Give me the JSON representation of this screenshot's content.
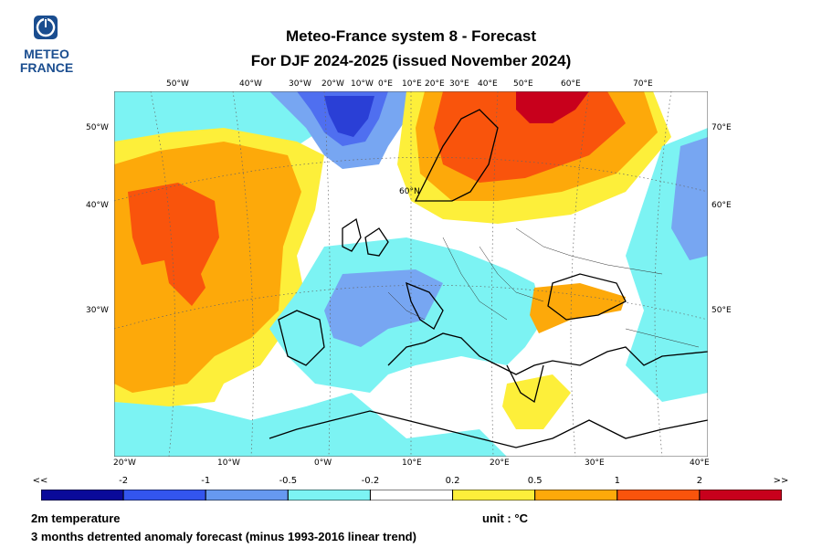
{
  "logo": {
    "line1": "METEO",
    "line2": "FRANCE"
  },
  "title": {
    "line1": "Meteo-France system 8  -  Forecast",
    "line2": "For DJF 2024-2025      (issued November 2024)"
  },
  "map": {
    "top_labels": [
      "50°W",
      "40°W",
      "30°W",
      "20°W",
      "10°W",
      "0°E",
      "10°E",
      "20°E",
      "30°E",
      "40°E",
      "50°E",
      "60°E",
      "70°E"
    ],
    "bottom_labels": [
      "20°W",
      "10°W",
      "0°W",
      "10°E",
      "20°E",
      "30°E",
      "40°E"
    ],
    "left_labels": [
      "50°W",
      "40°W",
      "30°W"
    ],
    "right_labels": [
      "70°E",
      "60°E",
      "50°E"
    ],
    "inner_label": "60°N",
    "colors": {
      "strong_cold": "#2a3fd6",
      "mid_cold": "#4f6ff0",
      "light_cold": "#77a6f2",
      "cyan": "#7cf3f3",
      "neutral": "#ffffff",
      "yellow": "#fdef3a",
      "orange": "#fda90a",
      "red_orange": "#f9540c",
      "dark_red": "#c8001c"
    }
  },
  "legend": {
    "left_open": "<<",
    "right_open": ">>",
    "ticks": [
      "-2",
      "-1",
      "-0.5",
      "-0.2",
      "0.2",
      "0.5",
      "1",
      "2"
    ],
    "colors": [
      "#0a0a9a",
      "#3355ee",
      "#6699f0",
      "#7cf3f3",
      "#ffffff",
      "#fdef3a",
      "#fda90a",
      "#f9540c",
      "#c8001c"
    ]
  },
  "footer": {
    "variable": "2m temperature",
    "unit": "unit : °C",
    "description": "3 months detrented anomaly forecast (minus 1993-2016 linear trend)"
  }
}
